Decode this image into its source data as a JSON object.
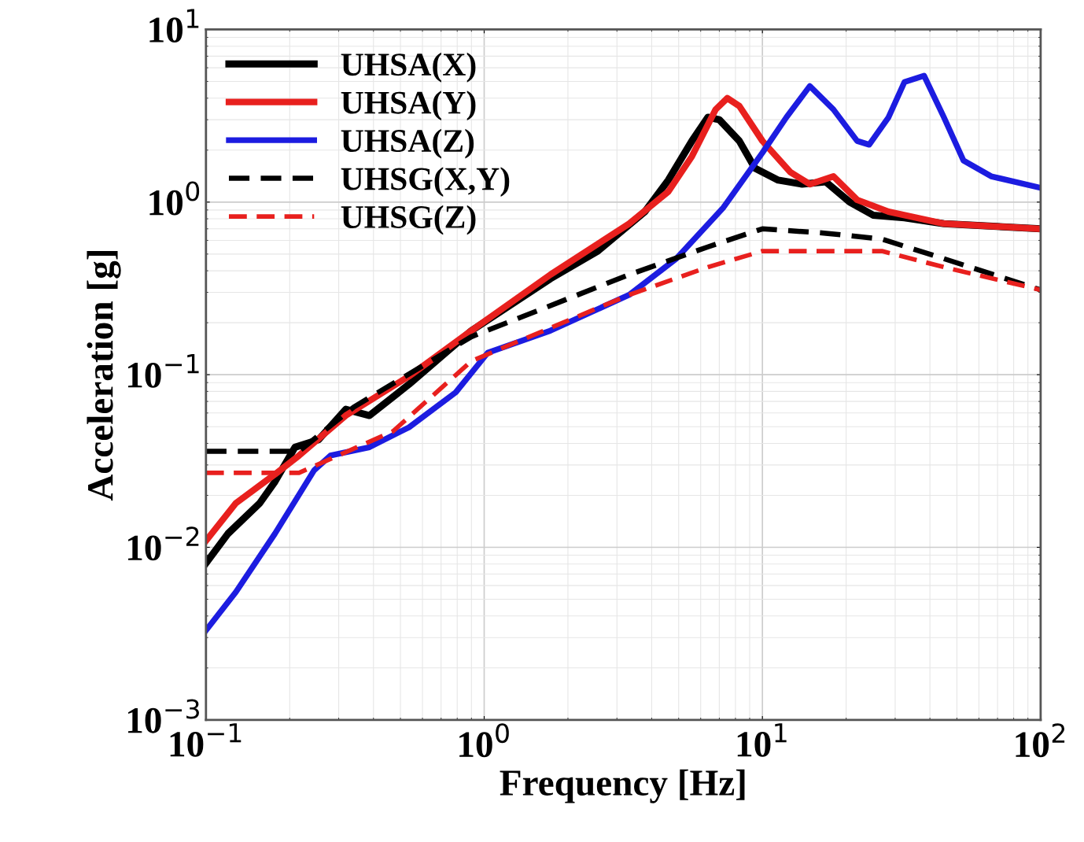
{
  "chart_data": {
    "type": "line",
    "xlabel": "Frequency [Hz]",
    "ylabel": "Acceleration [g]",
    "log": "xy",
    "xlim": [
      0.1,
      100
    ],
    "ylim": [
      0.001,
      10
    ],
    "xticks": [
      {
        "value": 0.1,
        "label": "10$^{−1}$"
      },
      {
        "value": 1,
        "label": "10$^{0}$"
      },
      {
        "value": 10,
        "label": "10$^{1}$"
      },
      {
        "value": 100,
        "label": "10$^{2}$"
      }
    ],
    "yticks": [
      {
        "value": 0.001,
        "label": "10$^{−3}$"
      },
      {
        "value": 0.01,
        "label": "10$^{−2}$"
      },
      {
        "value": 0.1,
        "label": "10$^{−1}$"
      },
      {
        "value": 1,
        "label": "10$^{0}$"
      },
      {
        "value": 10,
        "label": "10$^{1}$"
      }
    ],
    "grid": true,
    "legend": "top left",
    "series": [
      {
        "name": "UHSA(X)",
        "color": "#000000",
        "line_style": "solid",
        "x": [
          0.1,
          0.12,
          0.156,
          0.177,
          0.209,
          0.254,
          0.318,
          0.387,
          0.537,
          0.9,
          1.73,
          2.56,
          3.78,
          4.59,
          5.58,
          6.37,
          7.0,
          8.26,
          9.4,
          11.4,
          13.9,
          16.9,
          20.6,
          25.0,
          32.4,
          44.9,
          100
        ],
        "values": [
          0.0081,
          0.012,
          0.018,
          0.024,
          0.038,
          0.042,
          0.063,
          0.058,
          0.088,
          0.18,
          0.36,
          0.52,
          0.88,
          1.34,
          2.26,
          3.1,
          3.0,
          2.26,
          1.57,
          1.34,
          1.27,
          1.31,
          1.0,
          0.84,
          0.81,
          0.75,
          0.7
        ]
      },
      {
        "name": "UHSA(Y)",
        "color": "#e8201e",
        "line_style": "solid",
        "x": [
          0.1,
          0.128,
          0.177,
          0.216,
          0.318,
          0.537,
          0.9,
          1.73,
          3.32,
          4.59,
          5.58,
          6.79,
          7.48,
          8.26,
          10.0,
          12.6,
          14.8,
          18.0,
          21.9,
          28.4,
          44.9,
          100
        ],
        "values": [
          0.0109,
          0.018,
          0.0265,
          0.034,
          0.058,
          0.098,
          0.18,
          0.38,
          0.75,
          1.15,
          1.84,
          3.44,
          4.0,
          3.6,
          2.26,
          1.49,
          1.27,
          1.41,
          1.03,
          0.88,
          0.75,
          0.7
        ]
      },
      {
        "name": "UHSA(Z)",
        "color": "#1c1ce0",
        "line_style": "solid",
        "x": [
          0.1,
          0.128,
          0.177,
          0.245,
          0.28,
          0.387,
          0.537,
          0.79,
          1.03,
          1.73,
          3.32,
          4.9,
          7.24,
          10.0,
          12.2,
          14.8,
          18.0,
          21.9,
          24.2,
          28.4,
          32.4,
          38.1,
          44.9,
          52.8,
          66.4,
          100
        ],
        "values": [
          0.0033,
          0.0055,
          0.012,
          0.028,
          0.034,
          0.038,
          0.0496,
          0.079,
          0.134,
          0.18,
          0.29,
          0.47,
          0.93,
          1.93,
          3.1,
          4.7,
          3.44,
          2.26,
          2.15,
          3.1,
          4.96,
          5.4,
          3.1,
          1.74,
          1.41,
          1.21
        ]
      },
      {
        "name": "UHSG(X,Y)",
        "color": "#000000",
        "line_style": "dashed",
        "x": [
          0.1,
          0.216,
          0.34,
          0.9,
          3.32,
          6.37,
          10.0,
          16.9,
          26.9,
          44.9,
          100
        ],
        "values": [
          0.036,
          0.036,
          0.065,
          0.166,
          0.38,
          0.55,
          0.7,
          0.66,
          0.61,
          0.47,
          0.31
        ]
      },
      {
        "name": "UHSG(Z)",
        "color": "#e8201e",
        "line_style": "dashed",
        "x": [
          0.1,
          0.216,
          0.47,
          0.9,
          3.32,
          6.37,
          10.0,
          26.9,
          44.9,
          100
        ],
        "values": [
          0.027,
          0.027,
          0.047,
          0.12,
          0.29,
          0.42,
          0.52,
          0.52,
          0.42,
          0.31
        ]
      }
    ]
  }
}
